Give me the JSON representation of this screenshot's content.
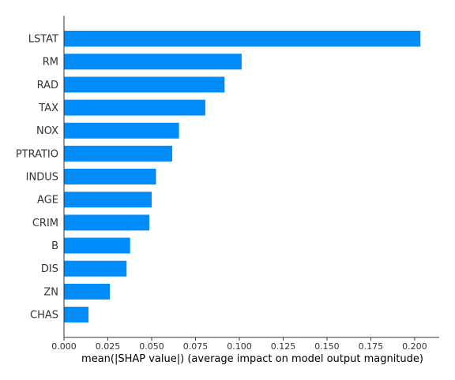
{
  "chart_data": {
    "type": "bar",
    "orientation": "horizontal",
    "categories": [
      "LSTAT",
      "RM",
      "RAD",
      "TAX",
      "NOX",
      "PTRATIO",
      "INDUS",
      "AGE",
      "CRIM",
      "B",
      "DIS",
      "ZN",
      "CHAS"
    ],
    "values": [
      0.2033,
      0.1013,
      0.0916,
      0.0806,
      0.0656,
      0.0617,
      0.0525,
      0.05,
      0.0487,
      0.0377,
      0.0357,
      0.0262,
      0.014
    ],
    "xlabel": "mean(|SHAP value|) (average impact on model output magnitude)",
    "xlim": [
      0,
      0.214
    ],
    "xticks": [
      0.0,
      0.025,
      0.05,
      0.075,
      0.1,
      0.125,
      0.15,
      0.175,
      0.2
    ],
    "xtick_labels": [
      "0.000",
      "0.025",
      "0.050",
      "0.075",
      "0.100",
      "0.125",
      "0.150",
      "0.175",
      "0.200"
    ],
    "grid": false,
    "bar_color": "#008bfb"
  }
}
